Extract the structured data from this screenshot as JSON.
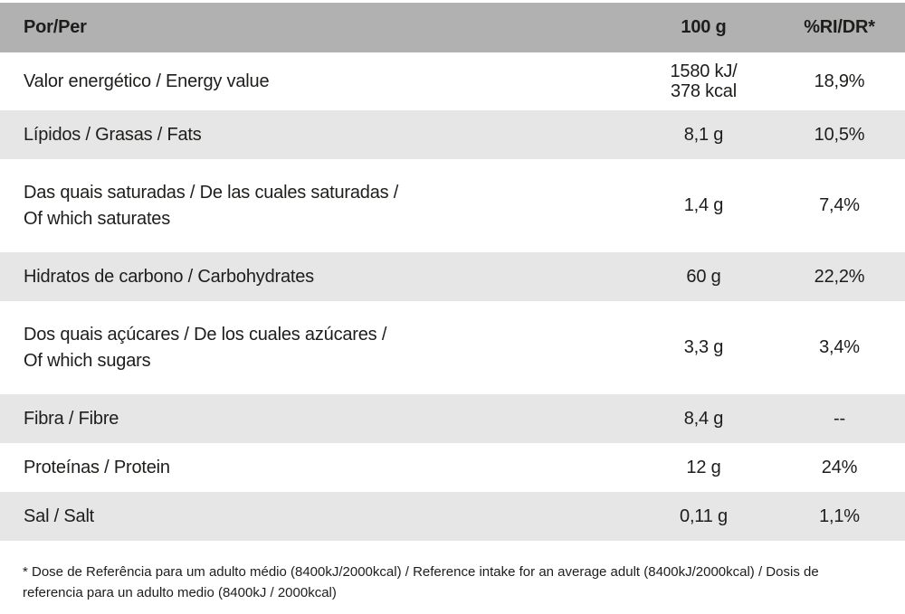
{
  "colors": {
    "header_bg": "#b1b1b1",
    "row_shaded_bg": "#e6e6e6",
    "text": "#1d1d1b"
  },
  "table": {
    "header": {
      "per_label": "Por/Per",
      "amount_label": "100 g",
      "ri_label": "%RI/DR*"
    },
    "rows": [
      {
        "label_lines": [
          "Valor energético / Energy value"
        ],
        "amount_lines": [
          "1580 kJ/",
          "378 kcal"
        ],
        "ri": "18,9%"
      },
      {
        "label_lines": [
          "Lípidos / Grasas / Fats"
        ],
        "amount_lines": [
          "8,1 g"
        ],
        "ri": "10,5%"
      },
      {
        "label_lines": [
          "Das quais saturadas / De las cuales saturadas /",
          "Of which saturates"
        ],
        "amount_lines": [
          "1,4 g"
        ],
        "ri": "7,4%"
      },
      {
        "label_lines": [
          "Hidratos de carbono / Carbohydrates"
        ],
        "amount_lines": [
          "60 g"
        ],
        "ri": "22,2%"
      },
      {
        "label_lines": [
          "Dos quais açúcares / De los cuales azúcares /",
          "Of which sugars"
        ],
        "amount_lines": [
          "3,3 g"
        ],
        "ri": "3,4%"
      },
      {
        "label_lines": [
          "Fibra / Fibre"
        ],
        "amount_lines": [
          "8,4 g"
        ],
        "ri": "--"
      },
      {
        "label_lines": [
          "Proteínas / Protein"
        ],
        "amount_lines": [
          "12 g"
        ],
        "ri": "24%"
      },
      {
        "label_lines": [
          "Sal / Salt"
        ],
        "amount_lines": [
          "0,11 g"
        ],
        "ri": "1,1%"
      }
    ]
  },
  "footnote": "* Dose de Referência para um adulto médio (8400kJ/2000kcal) / Reference intake for an average adult (8400kJ/2000kcal) / Dosis de referencia para un adulto medio (8400kJ / 2000kcal)"
}
